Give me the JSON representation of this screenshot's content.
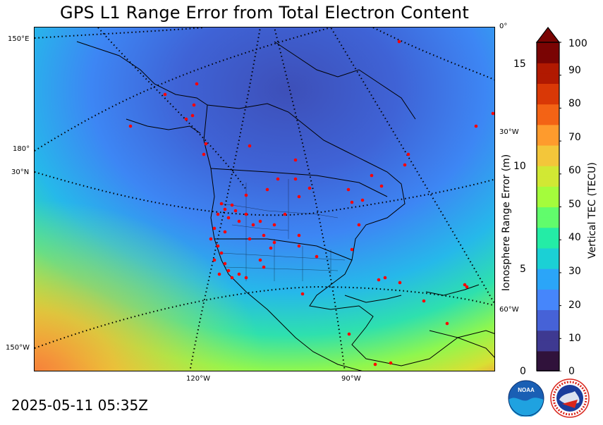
{
  "title": "GPS L1 Range Error from Total Electron Content",
  "timestamp": "2025-05-11 05:35Z",
  "grid_labels": {
    "lon_150e": "150°E",
    "lon_180": "180°",
    "lat_30n": "30°N",
    "lon_150w": "150°W",
    "lon_0": "0°",
    "lon_30w": "30°W",
    "lon_60w": "60°W",
    "lon_120w": "120°W",
    "lon_90w": "90°W"
  },
  "left_axis": {
    "label": "Ionosphere Range Error (m)",
    "ticks": [
      "0",
      "5",
      "10",
      "15"
    ]
  },
  "colorbar": {
    "label": "Vertical TEC (TECU)",
    "ticks": [
      "0",
      "10",
      "20",
      "30",
      "40",
      "50",
      "60",
      "70",
      "80",
      "90",
      "100"
    ],
    "colors": [
      "#30123b",
      "#3e3991",
      "#4662d7",
      "#4686fb",
      "#2ba5f8",
      "#1bd0d5",
      "#24eca6",
      "#61fc6c",
      "#a4fc3c",
      "#d1e834",
      "#f3c63a",
      "#fe9b2d",
      "#f36315",
      "#d93806",
      "#b11901",
      "#7a0403"
    ],
    "extend_color": "#7a0403"
  },
  "logos": {
    "noaa": "NOAA",
    "nws": "NATIONAL WEATHER SERVICE"
  }
}
